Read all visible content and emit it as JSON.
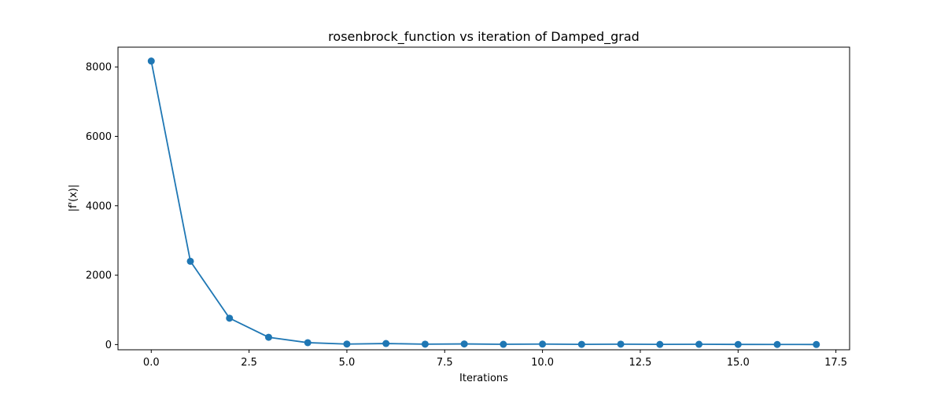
{
  "chart_data": {
    "type": "line",
    "title": "rosenbrock_function vs iteration of Damped_grad",
    "xlabel": "Iterations",
    "ylabel": "|f'(x)|",
    "xlim": [
      -0.85,
      17.85
    ],
    "ylim": [
      -150,
      8570
    ],
    "grid": false,
    "x_ticks": [
      0.0,
      2.5,
      5.0,
      7.5,
      10.0,
      12.5,
      15.0,
      17.5
    ],
    "x_tick_labels": [
      "0.0",
      "2.5",
      "5.0",
      "7.5",
      "10.0",
      "12.5",
      "15.0",
      "17.5"
    ],
    "y_ticks": [
      0,
      2000,
      4000,
      6000,
      8000
    ],
    "y_tick_labels": [
      "0",
      "2000",
      "4000",
      "6000",
      "8000"
    ],
    "series": [
      {
        "color": "#1f77b4",
        "marker": "circle",
        "x": [
          0,
          1,
          2,
          3,
          4,
          5,
          6,
          7,
          8,
          9,
          10,
          11,
          12,
          13,
          14,
          15,
          16,
          17
        ],
        "y": [
          8170,
          2400,
          760,
          210,
          55,
          15,
          30,
          12,
          18,
          8,
          14,
          6,
          12,
          5,
          8,
          4,
          3,
          2
        ]
      }
    ]
  }
}
